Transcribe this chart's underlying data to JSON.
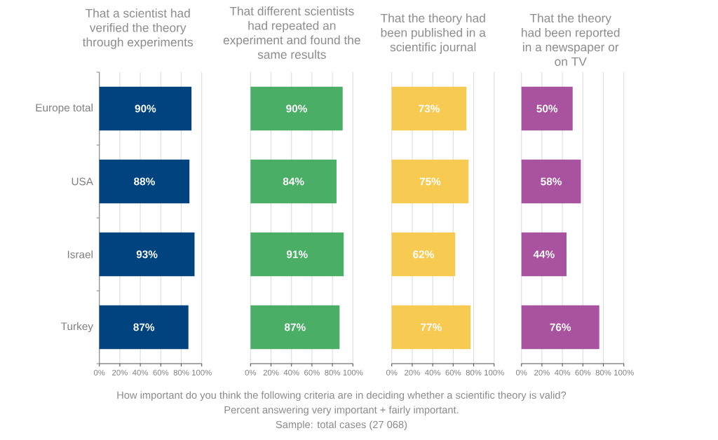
{
  "chart_data": [
    {
      "type": "bar",
      "orientation": "horizontal",
      "title": "That a scientist had verified the theory through experiments",
      "categories": [
        "Europe total",
        "USA",
        "Israel",
        "Turkey"
      ],
      "values": [
        90,
        88,
        93,
        87
      ],
      "value_labels": [
        "90%",
        "88%",
        "93%",
        "87%"
      ],
      "color": "#00437f",
      "xlim": [
        0,
        100
      ],
      "xticks": [
        {
          "value": 0,
          "label": "0%"
        },
        {
          "value": 20,
          "label": "20%"
        },
        {
          "value": 40,
          "label": "40%"
        },
        {
          "value": 60,
          "label": "60%"
        },
        {
          "value": 80,
          "label": "80%"
        },
        {
          "value": 100,
          "label": "100%"
        }
      ],
      "grid": "x",
      "annotations": [
        "How important do you think the following criteria are in deciding whether a scientific theory is valid?",
        "Percent answering very important + fairly important.",
        "Sample: total cases (27 068)"
      ]
    },
    {
      "type": "bar",
      "orientation": "horizontal",
      "title": "That different scientists had repeated an experiment and found the same results",
      "categories": [
        null,
        null,
        null,
        null
      ],
      "values": [
        90,
        84,
        91,
        87
      ],
      "value_labels": [
        "90%",
        "84%",
        "91%",
        "87%"
      ],
      "color": "#4aae66",
      "xlim": [
        0,
        100
      ],
      "xticks": [
        {
          "value": 0,
          "label": "0%"
        },
        {
          "value": 20,
          "label": "20%"
        },
        {
          "value": 40,
          "label": "40%"
        },
        {
          "value": 60,
          "label": "60%"
        },
        {
          "value": 80,
          "label": "80%"
        },
        {
          "value": 100,
          "label": "100%"
        }
      ],
      "grid": "x",
      "tick_labels": "x"
    },
    {
      "type": "bar",
      "orientation": "horizontal",
      "title": "That the theory had been published in a scientific journal",
      "categories": [
        null,
        null,
        null,
        null
      ],
      "values": [
        73,
        75,
        62,
        77
      ],
      "value_labels": [
        "73%",
        "75%",
        "62%",
        "77%"
      ],
      "color": "#f7ca52",
      "xlim": [
        0,
        100
      ],
      "xticks": [
        {
          "value": 0,
          "label": "0%"
        },
        {
          "value": 20,
          "label": "20%"
        },
        {
          "value": 40,
          "label": "40%"
        },
        {
          "value": 60,
          "label": "60%"
        },
        {
          "value": 80,
          "label": "80%"
        },
        {
          "value": 100,
          "label": "100%"
        }
      ],
      "grid": "x",
      "tick_labels": "x"
    },
    {
      "type": "bar",
      "orientation": "horizontal",
      "title": "That the theory had been reported in a newspaper or on TV",
      "categories": [
        null,
        null,
        null,
        null
      ],
      "values": [
        50,
        58,
        44,
        76
      ],
      "value_labels": [
        "50%",
        "58%",
        "44%",
        "76%"
      ],
      "color": "#a9529f",
      "xlim": [
        0,
        100
      ],
      "xticks": [
        {
          "value": 0,
          "label": "0%"
        },
        {
          "value": 20,
          "label": "20%"
        },
        {
          "value": 40,
          "label": "40%"
        },
        {
          "value": 60,
          "label": "60%"
        },
        {
          "value": 80,
          "label": "80%"
        },
        {
          "value": 100,
          "label": "100%"
        }
      ],
      "grid": "x",
      "tick_labels": "x"
    }
  ]
}
